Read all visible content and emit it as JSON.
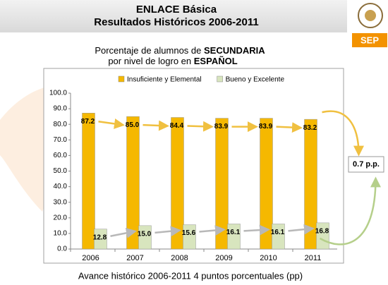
{
  "header": {
    "title": "ENLACE Básica",
    "subtitle": "Resultados Históricos 2006-2011",
    "logo_text": "SEP"
  },
  "chart_data": {
    "type": "bar",
    "title": [
      [
        "Porcentaje de alumnos de",
        "SECUNDARIA"
      ],
      [
        "por  nivel de logro en",
        "ESPAÑOL"
      ]
    ],
    "categories": [
      "2006",
      "2007",
      "2008",
      "2009",
      "2010",
      "2011"
    ],
    "series": [
      {
        "name": "Insuficiente y Elemental",
        "color": "#f5b800",
        "values": [
          87.2,
          85.0,
          84.4,
          83.9,
          83.9,
          83.2
        ],
        "value_labels": [
          "87.2",
          "85.0",
          "84.4",
          "83.9",
          "83.9",
          "83.2"
        ]
      },
      {
        "name": "Bueno y Excelente",
        "color": "#d8e5be",
        "values": [
          12.8,
          15.0,
          15.6,
          16.1,
          16.1,
          16.8
        ],
        "value_labels": [
          "12.8",
          "15.0",
          "15.6",
          "16.1",
          "16.1",
          "16.8"
        ]
      }
    ],
    "ylim": [
      0,
      100
    ],
    "yticks": [
      {
        "value": 0,
        "label": "0.0"
      },
      {
        "value": 10,
        "label": "10.0"
      },
      {
        "value": 20,
        "label": "20.0"
      },
      {
        "value": 30,
        "label": "30.0"
      },
      {
        "value": 40,
        "label": "40.0"
      },
      {
        "value": 50,
        "label": "50.0"
      },
      {
        "value": 60,
        "label": "60.0"
      },
      {
        "value": 70,
        "label": "70.0"
      },
      {
        "value": 80,
        "label": "80.0"
      },
      {
        "value": 90,
        "label": "90.0"
      },
      {
        "value": 100,
        "label": "100.0"
      }
    ],
    "grid": false,
    "legend": "top",
    "annotation": "0.7 p.p.",
    "footnote": "Avance histórico 2006-2011   4  puntos porcentuales (pp)"
  }
}
